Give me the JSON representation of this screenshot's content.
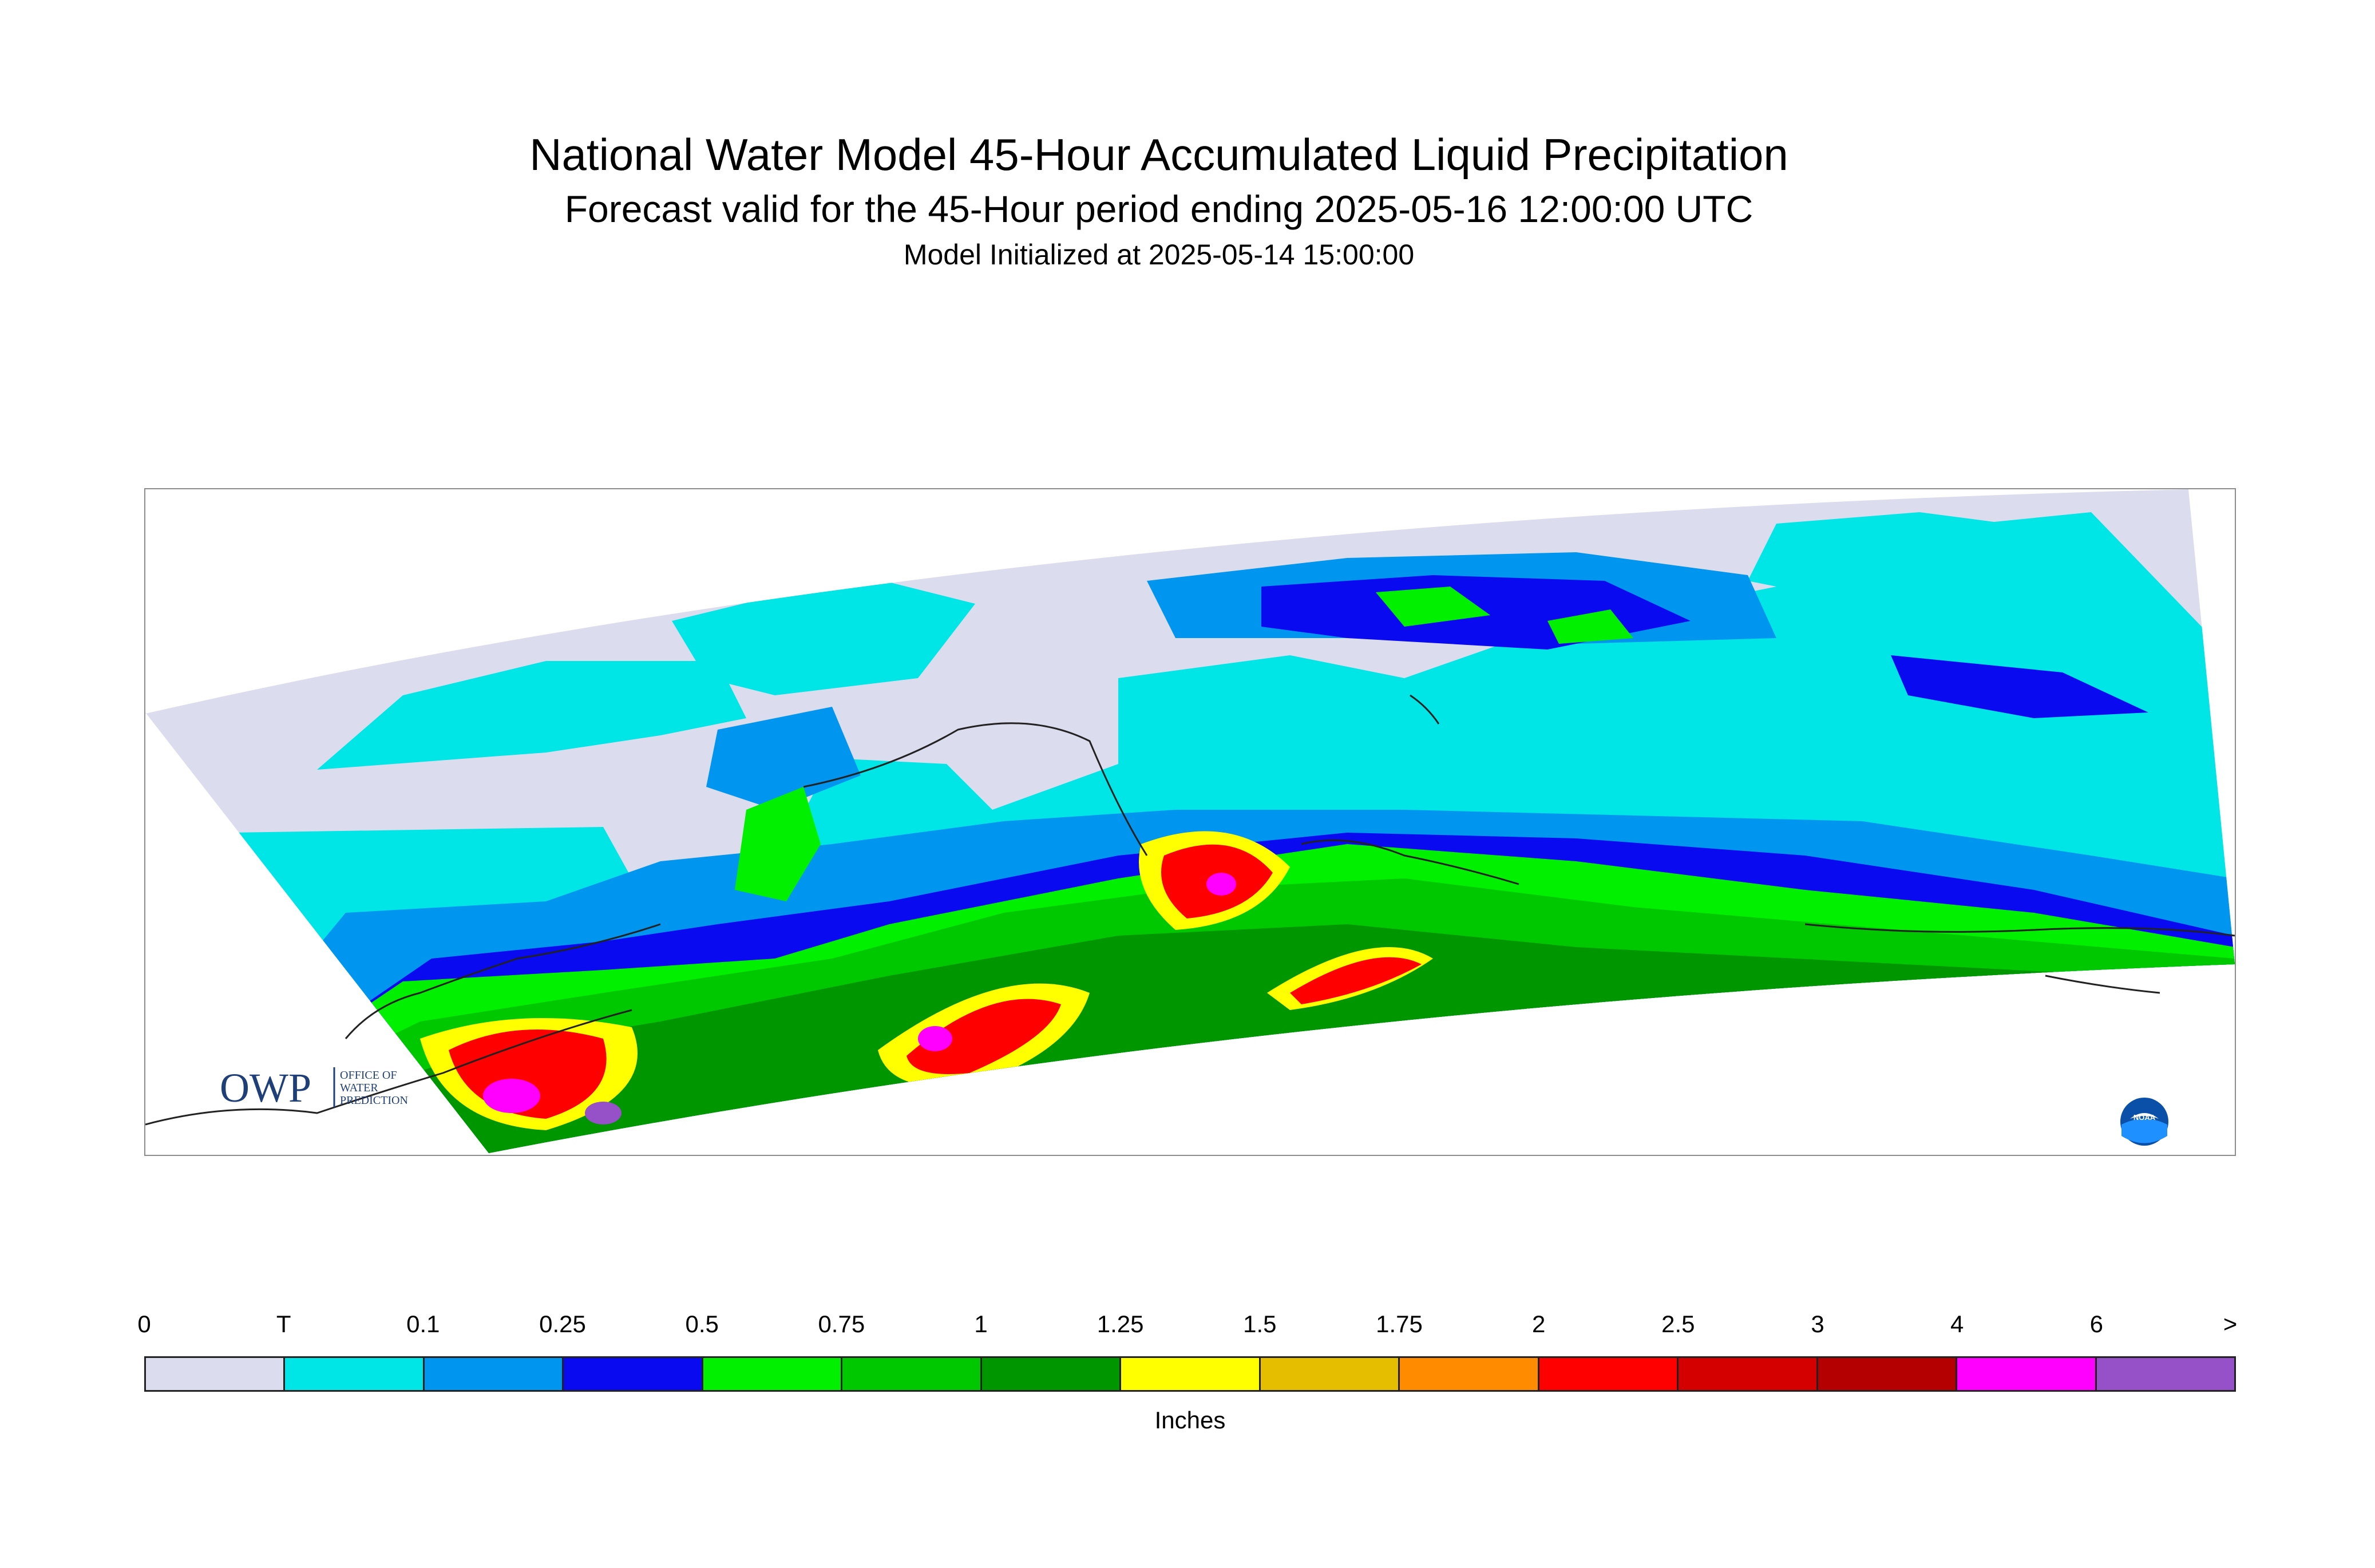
{
  "title": "National Water Model 45-Hour Accumulated Liquid Precipitation",
  "subtitle": "Forecast valid for the 45-Hour period ending 2025-05-16 12:00:00 UTC",
  "init_line": "Model Initialized at 2025-05-14 15:00:00",
  "logos": {
    "owp_mark": "OWP",
    "owp_text": [
      "OFFICE OF",
      "WATER",
      "PREDICTION"
    ],
    "noaa_text": "NOAA"
  },
  "legend": {
    "unit": "Inches",
    "ticks": [
      "0",
      "T",
      "0.1",
      "0.25",
      "0.5",
      "0.75",
      "1",
      "1.25",
      "1.5",
      "1.75",
      "2",
      "2.5",
      "3",
      "4",
      "6",
      ">"
    ],
    "colors": [
      "#dcdcef",
      "#00e5e5",
      "#0096f0",
      "#0a0af0",
      "#00f000",
      "#00c800",
      "#009600",
      "#ffff00",
      "#e6be00",
      "#ff8c00",
      "#ff0000",
      "#d40000",
      "#b40000",
      "#ff00ff",
      "#9650c8"
    ]
  }
}
